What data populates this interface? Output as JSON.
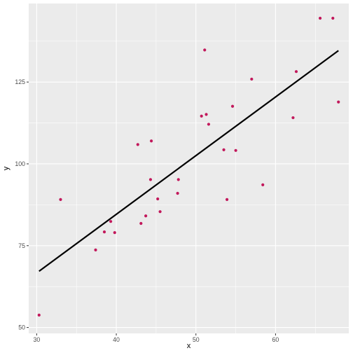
{
  "chart_data": {
    "type": "scatter",
    "xlabel": "x",
    "ylabel": "y",
    "xlim": [
      29.0,
      69.2
    ],
    "ylim": [
      48.2,
      149.0
    ],
    "x_ticks": [
      30,
      40,
      50,
      60
    ],
    "y_ticks": [
      50,
      75,
      100,
      125
    ],
    "x_tick_labels": [
      "30",
      "40",
      "50",
      "60"
    ],
    "y_tick_labels": [
      "50",
      "75",
      "100",
      "125"
    ],
    "grid": true,
    "legend": "none",
    "colors": {
      "panel": "#ebebeb",
      "grid": "#ffffff",
      "points": "#c2185b",
      "line": "#000000"
    },
    "points": [
      {
        "x": 30.3,
        "y": 53.8
      },
      {
        "x": 33.0,
        "y": 89.1
      },
      {
        "x": 37.4,
        "y": 73.7
      },
      {
        "x": 38.5,
        "y": 79.2
      },
      {
        "x": 39.3,
        "y": 82.4
      },
      {
        "x": 39.8,
        "y": 79.0
      },
      {
        "x": 42.7,
        "y": 105.9
      },
      {
        "x": 43.1,
        "y": 81.8
      },
      {
        "x": 43.7,
        "y": 84.1
      },
      {
        "x": 44.3,
        "y": 95.2
      },
      {
        "x": 44.4,
        "y": 107.0
      },
      {
        "x": 45.2,
        "y": 89.3
      },
      {
        "x": 45.5,
        "y": 85.4
      },
      {
        "x": 47.7,
        "y": 91.0
      },
      {
        "x": 47.8,
        "y": 95.2
      },
      {
        "x": 50.7,
        "y": 114.6
      },
      {
        "x": 51.1,
        "y": 134.8
      },
      {
        "x": 51.3,
        "y": 115.1
      },
      {
        "x": 51.6,
        "y": 112.1
      },
      {
        "x": 53.5,
        "y": 104.3
      },
      {
        "x": 53.9,
        "y": 89.1
      },
      {
        "x": 54.6,
        "y": 117.6
      },
      {
        "x": 55.0,
        "y": 104.1
      },
      {
        "x": 57.0,
        "y": 125.9
      },
      {
        "x": 58.4,
        "y": 93.6
      },
      {
        "x": 62.2,
        "y": 114.1
      },
      {
        "x": 62.6,
        "y": 128.2
      },
      {
        "x": 65.6,
        "y": 144.5
      },
      {
        "x": 67.2,
        "y": 144.5
      },
      {
        "x": 67.9,
        "y": 118.9
      }
    ],
    "fit_line": [
      {
        "x": 30.3,
        "y": 67.2
      },
      {
        "x": 67.9,
        "y": 134.6
      }
    ]
  }
}
